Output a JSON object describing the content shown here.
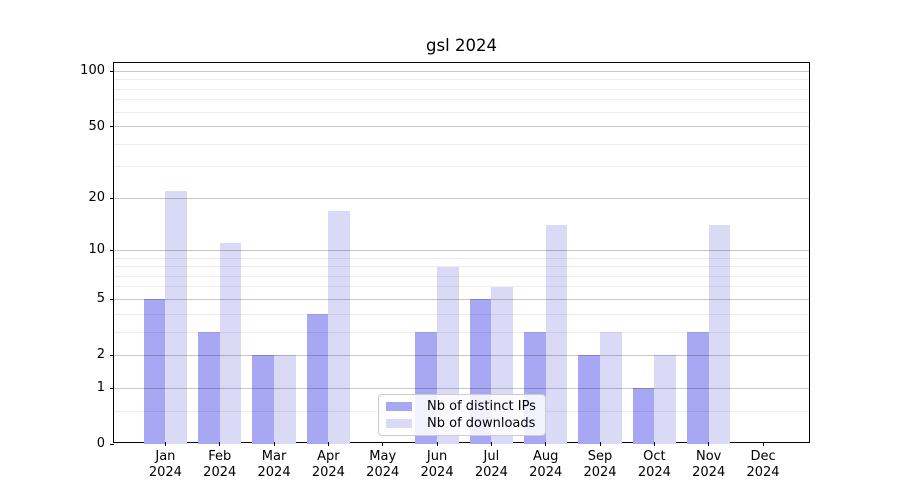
{
  "title": "gsl 2024",
  "chart_data": {
    "type": "bar",
    "title": "gsl 2024",
    "xlabel": "",
    "ylabel": "",
    "categories": [
      "Jan 2024",
      "Feb 2024",
      "Mar 2024",
      "Apr 2024",
      "May 2024",
      "Jun 2024",
      "Jul 2024",
      "Aug 2024",
      "Sep 2024",
      "Oct 2024",
      "Nov 2024",
      "Dec 2024"
    ],
    "series": [
      {
        "name": "Nb of distinct IPs",
        "color": "#a7a7f3",
        "values": [
          5,
          3,
          2,
          4,
          0,
          3,
          5,
          3,
          2,
          1,
          3,
          0
        ]
      },
      {
        "name": "Nb of downloads",
        "color": "#dadaf7",
        "values": [
          22,
          11,
          2,
          17,
          0,
          8,
          6,
          14,
          3,
          2,
          14,
          0
        ]
      }
    ],
    "y_axis": {
      "scale": "log10(1+x)",
      "ticks": [
        0,
        1,
        2,
        5,
        10,
        20,
        50,
        100
      ],
      "minor_ticks": [
        0.5,
        3,
        4,
        6,
        7,
        8,
        9,
        30,
        40,
        60,
        70,
        80,
        90
      ],
      "max": 111
    },
    "grid": "on",
    "legend": {
      "position": "inside-bottom-center",
      "labels": [
        "Nb of distinct IPs",
        "Nb of downloads"
      ]
    }
  }
}
